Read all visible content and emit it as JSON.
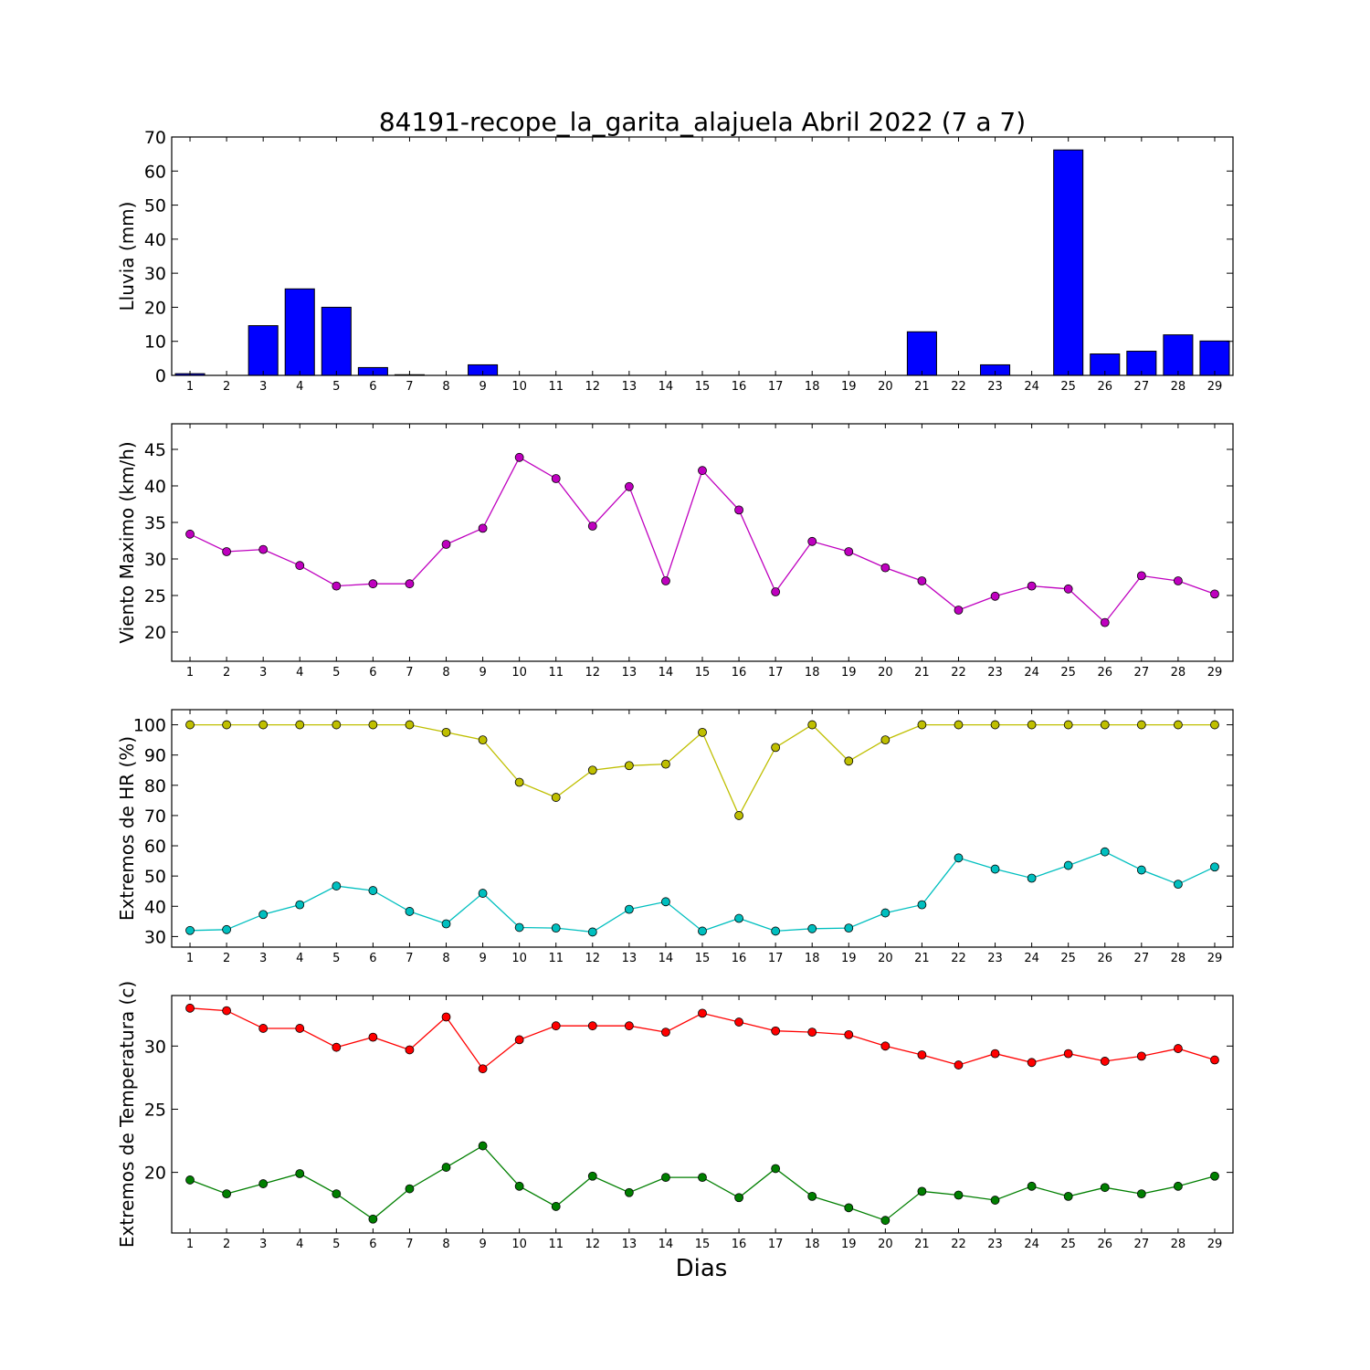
{
  "figure": {
    "title": "84191-recope_la_garita_alajuela Abril 2022  (7 a 7)",
    "xlabel": "Dias"
  },
  "chart_data": [
    {
      "type": "bar",
      "ylabel": "Lluvia (mm)",
      "ylim": [
        0,
        70
      ],
      "yticks": [
        0,
        10,
        20,
        30,
        40,
        50,
        60,
        70
      ],
      "categories": [
        "1",
        "2",
        "3",
        "4",
        "5",
        "6",
        "7",
        "8",
        "9",
        "10",
        "11",
        "12",
        "13",
        "14",
        "15",
        "16",
        "17",
        "18",
        "19",
        "20",
        "21",
        "22",
        "23",
        "24",
        "25",
        "26",
        "27",
        "28",
        "29"
      ],
      "series": [
        {
          "color": "#0000ff",
          "values": [
            0.5,
            0,
            14.6,
            25.4,
            20.0,
            2.3,
            0.2,
            0,
            3.1,
            0,
            0,
            0,
            0,
            0,
            0,
            0,
            0,
            0,
            0,
            0,
            12.8,
            0,
            3.1,
            0,
            66.2,
            6.3,
            7.1,
            11.9,
            10.1
          ]
        }
      ],
      "grid": false
    },
    {
      "type": "line",
      "ylabel": "Viento Maximo (km/h)",
      "ylim": [
        16,
        48.5
      ],
      "yticks": [
        20,
        25,
        30,
        35,
        40,
        45
      ],
      "categories": [
        "1",
        "2",
        "3",
        "4",
        "5",
        "6",
        "7",
        "8",
        "9",
        "10",
        "11",
        "12",
        "13",
        "14",
        "15",
        "16",
        "17",
        "18",
        "19",
        "20",
        "21",
        "22",
        "23",
        "24",
        "25",
        "26",
        "27",
        "28",
        "29"
      ],
      "series": [
        {
          "color": "#bf00bf",
          "values": [
            33.4,
            31.0,
            31.3,
            29.1,
            26.3,
            26.6,
            26.6,
            32.0,
            34.2,
            43.9,
            41.0,
            34.5,
            39.9,
            27.0,
            42.1,
            36.7,
            25.5,
            32.4,
            31.0,
            28.8,
            27.0,
            23.0,
            24.9,
            26.3,
            25.9,
            21.3,
            27.7,
            27.0,
            25.2
          ]
        }
      ],
      "grid": false
    },
    {
      "type": "line",
      "ylabel": "Extremos de HR (%)",
      "ylim": [
        26.5,
        105
      ],
      "yticks": [
        30,
        40,
        50,
        60,
        70,
        80,
        90,
        100
      ],
      "categories": [
        "1",
        "2",
        "3",
        "4",
        "5",
        "6",
        "7",
        "8",
        "9",
        "10",
        "11",
        "12",
        "13",
        "14",
        "15",
        "16",
        "17",
        "18",
        "19",
        "20",
        "21",
        "22",
        "23",
        "24",
        "25",
        "26",
        "27",
        "28",
        "29"
      ],
      "series": [
        {
          "color": "#bfbf00",
          "values": [
            100,
            100,
            100,
            100,
            100,
            100,
            100,
            97.5,
            95,
            81,
            76,
            85,
            86.5,
            87,
            97.5,
            70,
            92.5,
            100,
            88,
            95,
            100,
            100,
            100,
            100,
            100,
            100,
            100,
            100,
            100
          ]
        },
        {
          "color": "#00bfbf",
          "values": [
            32,
            32.3,
            37.3,
            40.5,
            46.7,
            45.2,
            38.3,
            34.2,
            44.3,
            33,
            32.8,
            31.5,
            39,
            41.5,
            31.8,
            36,
            31.8,
            32.6,
            32.8,
            37.8,
            40.5,
            56,
            52.3,
            49.3,
            53.5,
            58,
            52,
            47.3,
            53
          ]
        }
      ],
      "grid": false
    },
    {
      "type": "line",
      "ylabel": "Extremos de Temperatura (c)",
      "ylim": [
        15.2,
        34
      ],
      "yticks": [
        20,
        25,
        30
      ],
      "categories": [
        "1",
        "2",
        "3",
        "4",
        "5",
        "6",
        "7",
        "8",
        "9",
        "10",
        "11",
        "12",
        "13",
        "14",
        "15",
        "16",
        "17",
        "18",
        "19",
        "20",
        "21",
        "22",
        "23",
        "24",
        "25",
        "26",
        "27",
        "28",
        "29"
      ],
      "series": [
        {
          "color": "#ff0000",
          "values": [
            33.0,
            32.8,
            31.4,
            31.4,
            29.9,
            30.7,
            29.7,
            32.3,
            28.2,
            30.5,
            31.6,
            31.6,
            31.6,
            31.1,
            32.6,
            31.9,
            31.2,
            31.1,
            30.9,
            30.0,
            29.3,
            28.5,
            29.4,
            28.7,
            29.4,
            28.8,
            29.2,
            29.8,
            28.9
          ]
        },
        {
          "color": "#007f00",
          "values": [
            19.4,
            18.3,
            19.1,
            19.9,
            18.3,
            16.3,
            18.7,
            20.4,
            22.1,
            18.9,
            17.3,
            19.7,
            18.4,
            19.6,
            19.6,
            18.0,
            20.3,
            18.1,
            17.2,
            16.2,
            18.5,
            18.2,
            17.8,
            18.9,
            18.1,
            18.8,
            18.3,
            18.9,
            19.7
          ]
        }
      ],
      "grid": false
    }
  ]
}
